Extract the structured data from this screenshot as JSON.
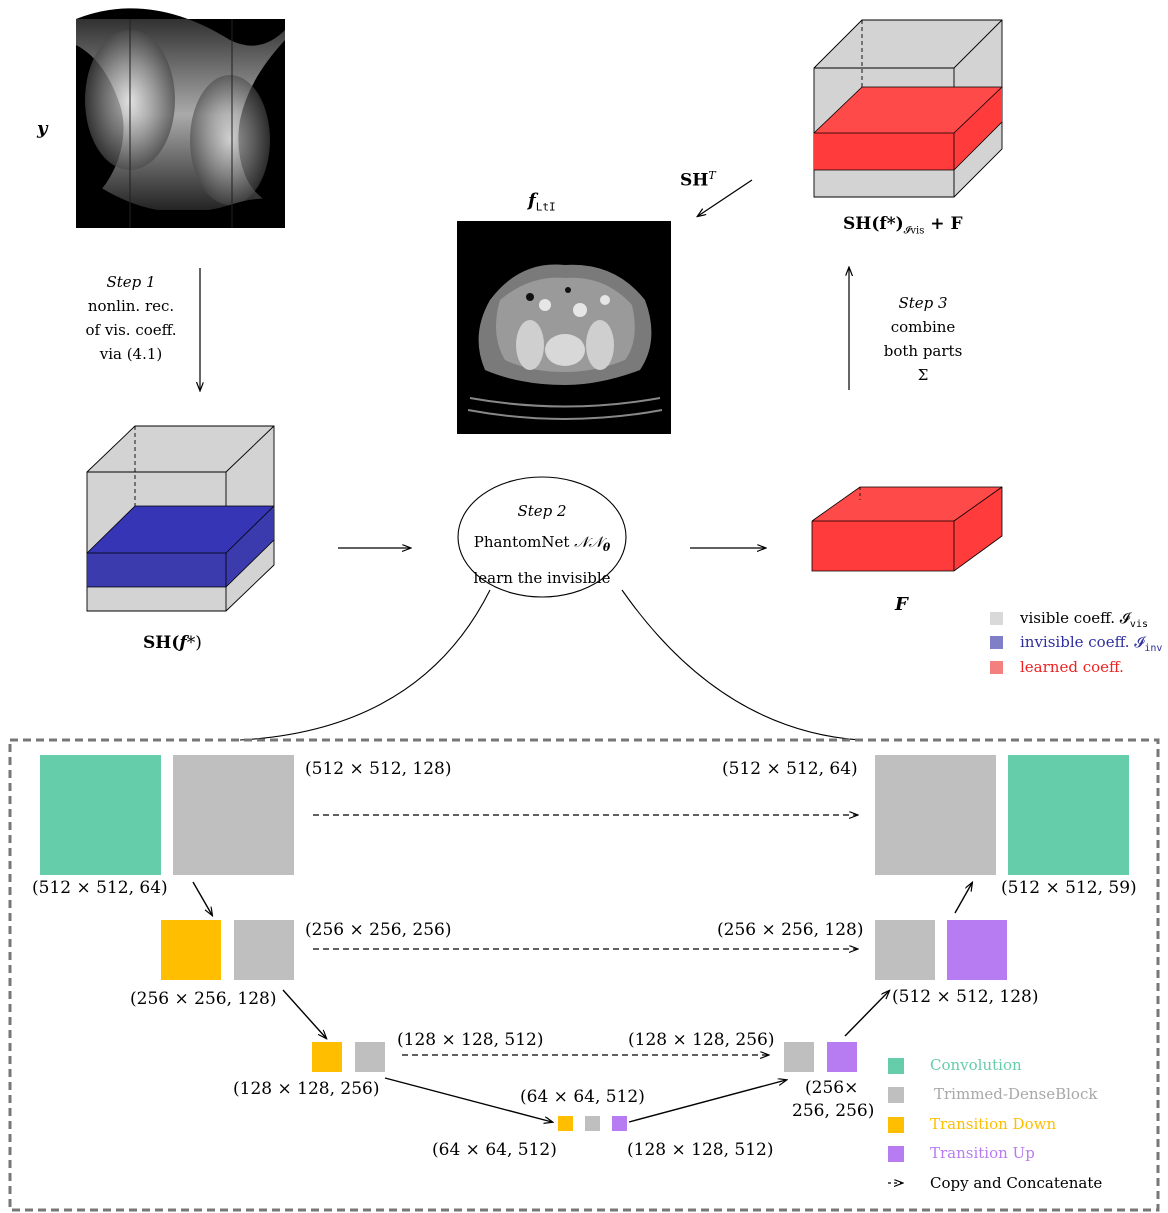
{
  "top": {
    "y_label": "y",
    "f_label": "f",
    "f_subscript": "LtI",
    "sht_label": "SH",
    "sht_sup": "T",
    "step1": {
      "title": "Step 1",
      "lines": [
        "nonlin. rec.",
        "of vis. coeff.",
        "via (4.1)"
      ]
    },
    "step2": {
      "title": "Step 2",
      "line1_prefix": "PhantomNet ",
      "line1_symbol": "𝒩𝒩",
      "line1_sub": "θ",
      "line2": "learn the invisible"
    },
    "step3": {
      "title": "Step 3",
      "lines": [
        "combine",
        "both parts",
        "Σ"
      ]
    },
    "cube_left_label_prefix": "SH(",
    "cube_left_label_var": "f",
    "cube_left_label_suffix": "*)",
    "cube_right_label": "SH(f*)",
    "cube_right_sub": "𝓘vis",
    "cube_right_plus": " + F",
    "F_label": "F"
  },
  "legend_top": [
    {
      "text": "visible coeff. 𝓘",
      "sub": "vis",
      "color": "#d9d9d9",
      "text_color": "#000000"
    },
    {
      "text": "invisible coeff. 𝓘",
      "sub": "inv",
      "color": "#7f7fc8",
      "text_color": "#2e2e9e"
    },
    {
      "text": "learned coeff.",
      "sub": "",
      "color": "#f47f7f",
      "text_color": "#ee2222"
    }
  ],
  "network": {
    "dims": {
      "d1": "(512 × 512, 128)",
      "d2": "(512 × 512, 64)",
      "d3": "(512 × 512, 64)",
      "d4": "(512 × 512, 59)",
      "d5": "(256 × 256, 256)",
      "d6": "(256 × 256, 128)",
      "d7": "(256 × 256, 128)",
      "d8": "(512 × 512, 128)",
      "d9": "(128 × 128, 512)",
      "d10": "(128 × 128, 256)",
      "d11": "(128 × 128, 256)",
      "d12a": "(256×",
      "d12b": "256, 256)",
      "d13": "(64 × 64, 512)",
      "d14": "(64 × 64, 512)",
      "d15": "(128 × 128, 512)"
    },
    "legend": [
      {
        "text": "Convolution",
        "color": "#66cdaa",
        "kind": "box"
      },
      {
        "text": "Trimmed-DenseBlock",
        "color": "#bfbfbf",
        "kind": "box"
      },
      {
        "text": "Transition Down",
        "color": "#ffbf00",
        "kind": "box"
      },
      {
        "text": "Transition Up",
        "color": "#b77cf2",
        "kind": "box"
      },
      {
        "text": "Copy and Concatenate",
        "color": "#000000",
        "kind": "arrow"
      }
    ]
  },
  "colors": {
    "convolution": "#66cdaa",
    "dense": "#bfbfbf",
    "down": "#ffbf00",
    "up": "#b77cf2",
    "cube_gray": "#d3d3d3",
    "cube_blue": "#2a2aa8",
    "cube_red": "#ff3b3b"
  }
}
